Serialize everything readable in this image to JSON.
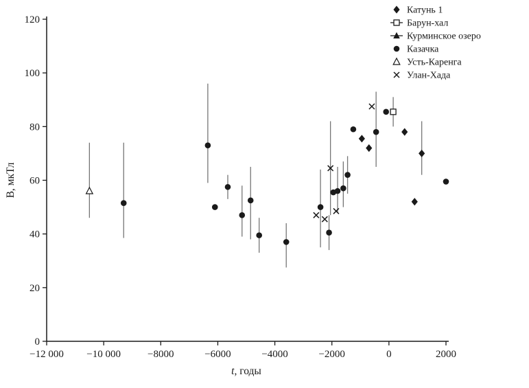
{
  "figure": {
    "background": "#ffffff",
    "axis_color": "#1a1a1a",
    "marker_color": "#1a1a1a",
    "error_bar_color": "#757575"
  },
  "chart_data": {
    "type": "scatter",
    "title": "",
    "xlabel": "t, годы",
    "xlabel_variable": "t",
    "xlabel_rest": ", годы",
    "ylabel": "B, мкТл",
    "xlim": [
      -12000,
      2000
    ],
    "ylim": [
      0,
      120
    ],
    "grid": false,
    "legend_position": "top-right-outside",
    "x_ticks": [
      {
        "v": -12000,
        "label": "−12 000"
      },
      {
        "v": -10000,
        "label": "−10 000"
      },
      {
        "v": -8000,
        "label": "−8000"
      },
      {
        "v": -6000,
        "label": "−6000"
      },
      {
        "v": -4000,
        "label": "−4000"
      },
      {
        "v": -2000,
        "label": "−2000"
      },
      {
        "v": 0,
        "label": "0"
      },
      {
        "v": 2000,
        "label": "2000"
      }
    ],
    "y_ticks": [
      {
        "v": 0,
        "label": "0"
      },
      {
        "v": 20,
        "label": "20"
      },
      {
        "v": 40,
        "label": "40"
      },
      {
        "v": 60,
        "label": "60"
      },
      {
        "v": 80,
        "label": "80"
      },
      {
        "v": 100,
        "label": "100"
      },
      {
        "v": 120,
        "label": "120"
      }
    ],
    "series": [
      {
        "name": "Катунь 1",
        "marker": "diamond-filled",
        "legend_line": false,
        "points": [
          {
            "x": -950,
            "y": 75.5,
            "lo": null,
            "hi": null
          },
          {
            "x": -700,
            "y": 72,
            "lo": null,
            "hi": null
          },
          {
            "x": 550,
            "y": 78,
            "lo": null,
            "hi": null
          },
          {
            "x": 900,
            "y": 52,
            "lo": null,
            "hi": null
          },
          {
            "x": 1150,
            "y": 70,
            "lo": 62,
            "hi": 82
          }
        ]
      },
      {
        "name": "Барун-хал",
        "marker": "square-open",
        "legend_line": true,
        "points": [
          {
            "x": 150,
            "y": 85.5,
            "lo": 80,
            "hi": 91
          }
        ]
      },
      {
        "name": "Курминское озеро",
        "marker": "triangle-filled",
        "legend_line": true,
        "points": []
      },
      {
        "name": "Казачка",
        "marker": "circle-filled",
        "legend_line": false,
        "points": [
          {
            "x": -9300,
            "y": 51.5,
            "lo": 38.5,
            "hi": 74
          },
          {
            "x": -6350,
            "y": 73,
            "lo": 59,
            "hi": 96
          },
          {
            "x": -6100,
            "y": 50,
            "lo": null,
            "hi": null
          },
          {
            "x": -5650,
            "y": 57.5,
            "lo": 53,
            "hi": 62
          },
          {
            "x": -5150,
            "y": 47,
            "lo": 39,
            "hi": 58
          },
          {
            "x": -4850,
            "y": 52.5,
            "lo": 38,
            "hi": 65
          },
          {
            "x": -4550,
            "y": 39.5,
            "lo": 33,
            "hi": 46
          },
          {
            "x": -3600,
            "y": 37,
            "lo": 27.5,
            "hi": 44
          },
          {
            "x": -2400,
            "y": 50,
            "lo": 35,
            "hi": 64
          },
          {
            "x": -2100,
            "y": 40.5,
            "lo": 34,
            "hi": 47
          },
          {
            "x": -1950,
            "y": 55.5,
            "lo": null,
            "hi": null
          },
          {
            "x": -1800,
            "y": 56,
            "lo": 48,
            "hi": 65
          },
          {
            "x": -1600,
            "y": 57,
            "lo": 50,
            "hi": 67
          },
          {
            "x": -1450,
            "y": 62,
            "lo": 55,
            "hi": 69
          },
          {
            "x": -1250,
            "y": 79,
            "lo": null,
            "hi": null
          },
          {
            "x": -450,
            "y": 78,
            "lo": 65,
            "hi": 93
          },
          {
            "x": -100,
            "y": 85.5,
            "lo": null,
            "hi": null
          },
          {
            "x": 2000,
            "y": 59.5,
            "lo": null,
            "hi": null
          }
        ]
      },
      {
        "name": "Усть-Каренга",
        "marker": "triangle-open",
        "legend_line": false,
        "points": [
          {
            "x": -10500,
            "y": 56,
            "lo": 46,
            "hi": 74
          }
        ]
      },
      {
        "name": "Улан-Хада",
        "marker": "x-cross",
        "legend_line": false,
        "points": [
          {
            "x": -2550,
            "y": 47,
            "lo": null,
            "hi": null
          },
          {
            "x": -2250,
            "y": 45.5,
            "lo": null,
            "hi": null
          },
          {
            "x": -2050,
            "y": 64.5,
            "lo": 47,
            "hi": 82
          },
          {
            "x": -1850,
            "y": 48.5,
            "lo": null,
            "hi": null
          },
          {
            "x": -600,
            "y": 87.5,
            "lo": null,
            "hi": null
          }
        ]
      }
    ]
  }
}
